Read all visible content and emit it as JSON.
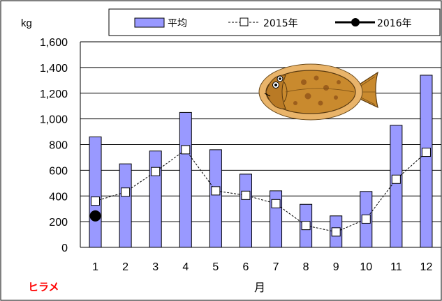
{
  "chart_data": {
    "type": "bar",
    "ylabel": "kg",
    "xlabel": "月",
    "annotation": "ヒラメ",
    "categories": [
      "1",
      "2",
      "3",
      "4",
      "5",
      "6",
      "7",
      "8",
      "9",
      "10",
      "11",
      "12"
    ],
    "ylim": [
      0,
      1600
    ],
    "yticks": [
      0,
      200,
      400,
      600,
      800,
      1000,
      1200,
      1400,
      1600
    ],
    "ytick_labels": [
      "0",
      "200",
      "400",
      "600",
      "800",
      "1,000",
      "1,200",
      "1,400",
      "1,600"
    ],
    "grid": true,
    "legend_position": "top",
    "series": [
      {
        "name": "平均",
        "kind": "bar",
        "color": "#9999ff",
        "values": [
          860,
          650,
          750,
          1050,
          760,
          570,
          440,
          335,
          245,
          435,
          950,
          1340
        ]
      },
      {
        "name": "2015年",
        "kind": "line-dashed-square",
        "color": "#000000",
        "values": [
          360,
          430,
          590,
          760,
          440,
          405,
          340,
          170,
          120,
          220,
          530,
          740
        ]
      },
      {
        "name": "2016年",
        "kind": "line-circle",
        "color": "#000000",
        "values": [
          245,
          null,
          null,
          null,
          null,
          null,
          null,
          null,
          null,
          null,
          null,
          null
        ]
      }
    ]
  },
  "colors": {
    "annotation": "#ff0000",
    "fish_body": "#c98a2e"
  },
  "icons": {
    "fish": "flatfish-icon"
  }
}
